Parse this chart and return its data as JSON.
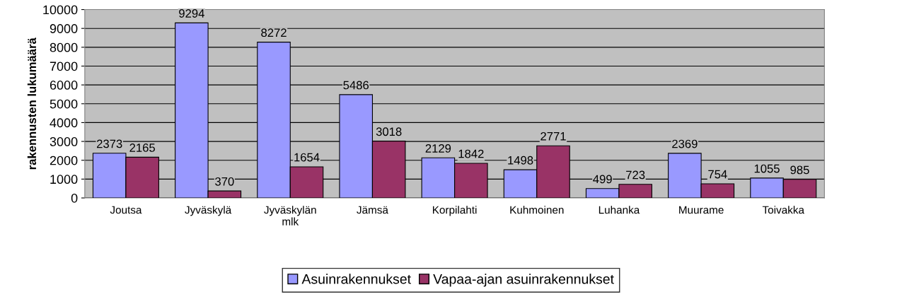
{
  "chart_data": {
    "type": "bar",
    "ylabel": "rakennusten lukumäärä",
    "categories": [
      "Joutsa",
      "Jyväskylä",
      "Jyväskylän\nmlk",
      "Jämsä",
      "Korpilahti",
      "Kuhmoinen",
      "Luhanka",
      "Muurame",
      "Toivakka"
    ],
    "series": [
      {
        "name": "Asuinrakennukset",
        "color": "#9999ff",
        "values": [
          2373,
          9294,
          8272,
          5486,
          2129,
          1498,
          499,
          2369,
          1055
        ]
      },
      {
        "name": "Vapaa-ajan asuinrakennukset",
        "color": "#993366",
        "values": [
          2165,
          370,
          1654,
          3018,
          1842,
          2771,
          723,
          754,
          985
        ]
      }
    ],
    "ylim": [
      0,
      10000
    ],
    "yticks": [
      0,
      1000,
      2000,
      3000,
      4000,
      5000,
      6000,
      7000,
      8000,
      9000,
      10000
    ],
    "grid": "y",
    "legend": "bottom",
    "data_labels": true
  }
}
